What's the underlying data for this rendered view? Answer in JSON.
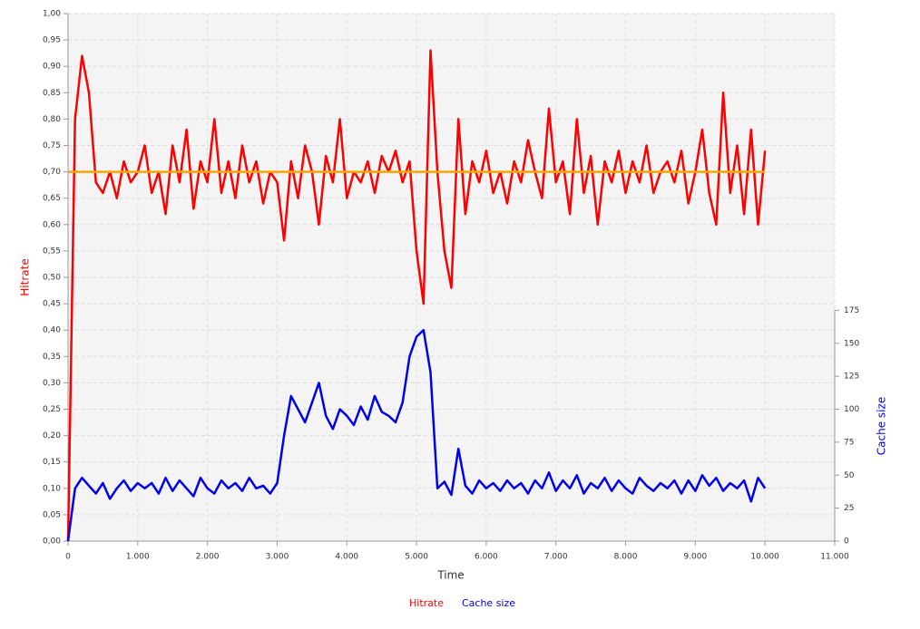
{
  "chart_data": {
    "type": "line",
    "xlabel": "Time",
    "ylabel": "Hitrate",
    "y2label": "Cache size",
    "grid": true,
    "legend": "bottom",
    "x": [
      0,
      100,
      200,
      300,
      400,
      500,
      600,
      700,
      800,
      900,
      1000,
      1100,
      1200,
      1300,
      1400,
      1500,
      1600,
      1700,
      1800,
      1900,
      2000,
      2100,
      2200,
      2300,
      2400,
      2500,
      2600,
      2700,
      2800,
      2900,
      3000,
      3100,
      3200,
      3300,
      3400,
      3500,
      3600,
      3700,
      3800,
      3900,
      4000,
      4100,
      4200,
      4300,
      4400,
      4500,
      4600,
      4700,
      4800,
      4900,
      5000,
      5100,
      5200,
      5300,
      5400,
      5500,
      5600,
      5700,
      5800,
      5900,
      6000,
      6100,
      6200,
      6300,
      6400,
      6500,
      6600,
      6700,
      6800,
      6900,
      7000,
      7100,
      7200,
      7300,
      7400,
      7500,
      7600,
      7700,
      7800,
      7900,
      8000,
      8100,
      8200,
      8300,
      8400,
      8500,
      8600,
      8700,
      8800,
      8900,
      9000,
      9100,
      9200,
      9300,
      9400,
      9500,
      9600,
      9700,
      9800,
      9900,
      10000
    ],
    "series": [
      {
        "name": "Hitrate",
        "color": "#ff0000",
        "values": [
          0,
          0.8,
          0.92,
          0.85,
          0.68,
          0.66,
          0.7,
          0.65,
          0.72,
          0.68,
          0.7,
          0.75,
          0.66,
          0.7,
          0.62,
          0.75,
          0.68,
          0.78,
          0.63,
          0.72,
          0.68,
          0.8,
          0.66,
          0.72,
          0.65,
          0.75,
          0.68,
          0.72,
          0.64,
          0.7,
          0.68,
          0.57,
          0.72,
          0.65,
          0.75,
          0.7,
          0.6,
          0.73,
          0.68,
          0.8,
          0.65,
          0.7,
          0.68,
          0.72,
          0.66,
          0.73,
          0.7,
          0.74,
          0.68,
          0.72,
          0.55,
          0.45,
          0.93,
          0.7,
          0.55,
          0.48,
          0.8,
          0.62,
          0.72,
          0.68,
          0.74,
          0.66,
          0.7,
          0.64,
          0.72,
          0.68,
          0.76,
          0.7,
          0.65,
          0.82,
          0.68,
          0.72,
          0.62,
          0.8,
          0.66,
          0.73,
          0.6,
          0.72,
          0.68,
          0.74,
          0.66,
          0.72,
          0.68,
          0.75,
          0.66,
          0.7,
          0.72,
          0.68,
          0.74,
          0.64,
          0.7,
          0.78,
          0.66,
          0.6,
          0.85,
          0.66,
          0.75,
          0.62,
          0.78,
          0.6,
          0.74
        ]
      },
      {
        "name": "Cache size",
        "color": "#0000ee",
        "axis": "y2",
        "values": [
          0,
          40,
          48,
          42,
          36,
          44,
          32,
          40,
          46,
          38,
          44,
          40,
          44,
          36,
          48,
          38,
          46,
          40,
          34,
          48,
          40,
          36,
          46,
          40,
          44,
          38,
          48,
          40,
          42,
          36,
          44,
          80,
          110,
          100,
          90,
          105,
          120,
          95,
          85,
          100,
          95,
          88,
          102,
          92,
          110,
          98,
          95,
          90,
          105,
          140,
          155,
          160,
          128,
          40,
          45,
          35,
          70,
          42,
          36,
          46,
          40,
          44,
          38,
          46,
          40,
          44,
          36,
          46,
          40,
          52,
          38,
          46,
          40,
          50,
          36,
          44,
          40,
          48,
          38,
          46,
          40,
          36,
          48,
          42,
          38,
          44,
          40,
          46,
          36,
          46,
          38,
          50,
          42,
          48,
          38,
          44,
          40,
          46,
          30,
          48,
          40
        ]
      }
    ],
    "reference_line": {
      "value": 0.7,
      "color": "#ffa500",
      "x": [
        0,
        10000
      ]
    },
    "xlim": [
      0,
      11000
    ],
    "xticks": [
      0,
      {
        "value": 1000,
        "label": "1.000"
      },
      {
        "value": 2000,
        "label": "2.000"
      },
      {
        "value": 3000,
        "label": "3.000"
      },
      {
        "value": 4000,
        "label": "4.000"
      },
      {
        "value": 5000,
        "label": "5.000"
      },
      {
        "value": 6000,
        "label": "6.000"
      },
      {
        "value": 7000,
        "label": "7.000"
      },
      {
        "value": 8000,
        "label": "8.000"
      },
      {
        "value": 9000,
        "label": "9.000"
      },
      {
        "value": 10000,
        "label": "10.000"
      },
      {
        "value": 11000,
        "label": "11.000"
      }
    ],
    "ylim": [
      0,
      1
    ],
    "yticks": [
      {
        "value": 0,
        "label": "0,00"
      },
      {
        "value": 0.05,
        "label": "0,05"
      },
      {
        "value": 0.1,
        "label": "0,10"
      },
      {
        "value": 0.15,
        "label": "0,15"
      },
      {
        "value": 0.2,
        "label": "0,20"
      },
      {
        "value": 0.25,
        "label": "0,25"
      },
      {
        "value": 0.3,
        "label": "0,30"
      },
      {
        "value": 0.35,
        "label": "0,35"
      },
      {
        "value": 0.4,
        "label": "0,40"
      },
      {
        "value": 0.45,
        "label": "0,45"
      },
      {
        "value": 0.5,
        "label": "0,50"
      },
      {
        "value": 0.55,
        "label": "0,55"
      },
      {
        "value": 0.6,
        "label": "0,60"
      },
      {
        "value": 0.65,
        "label": "0,65"
      },
      {
        "value": 0.7,
        "label": "0,70"
      },
      {
        "value": 0.75,
        "label": "0,75"
      },
      {
        "value": 0.8,
        "label": "0,80"
      },
      {
        "value": 0.85,
        "label": "0,85"
      },
      {
        "value": 0.9,
        "label": "0,90"
      },
      {
        "value": 0.95,
        "label": "0,95"
      },
      {
        "value": 1,
        "label": "1,00"
      }
    ],
    "y2lim": [
      0,
      400
    ],
    "y2ticks": [
      0,
      25,
      50,
      75,
      100,
      125,
      150,
      175
    ]
  }
}
